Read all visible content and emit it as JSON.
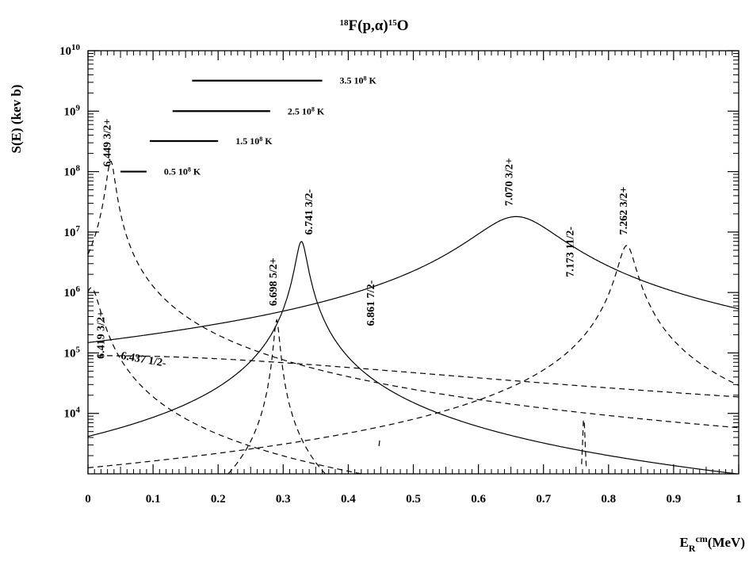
{
  "chart_data": {
    "type": "line",
    "title": {
      "sup": "18",
      "main": "F(p,",
      "alpha": "α",
      "close": ")",
      "sup2": "15",
      "main2": "O"
    },
    "xlabel": {
      "base": "E",
      "sub": "R",
      "sup": "cm",
      "unit": "(MeV)"
    },
    "ylabel": "S(E) (kev b)",
    "yscale": "log",
    "xlim": [
      0,
      1
    ],
    "ylim": [
      1000,
      10000000000
    ],
    "x_ticks": [
      {
        "value": 0,
        "label": "0"
      },
      {
        "value": 0.1,
        "label": "0.1"
      },
      {
        "value": 0.2,
        "label": "0.2"
      },
      {
        "value": 0.3,
        "label": "0.3"
      },
      {
        "value": 0.4,
        "label": "0.4"
      },
      {
        "value": 0.5,
        "label": "0.5"
      },
      {
        "value": 0.6,
        "label": "0.6"
      },
      {
        "value": 0.7,
        "label": "0.7"
      },
      {
        "value": 0.8,
        "label": "0.8"
      },
      {
        "value": 0.9,
        "label": "0.9"
      },
      {
        "value": 1,
        "label": "1"
      }
    ],
    "y_ticks": [
      {
        "value": 10000,
        "base": "10",
        "exp": "4"
      },
      {
        "value": 100000,
        "base": "10",
        "exp": "5"
      },
      {
        "value": 1000000,
        "base": "10",
        "exp": "6"
      },
      {
        "value": 10000000,
        "base": "10",
        "exp": "7"
      },
      {
        "value": 100000000,
        "base": "10",
        "exp": "8"
      },
      {
        "value": 1000000000,
        "base": "10",
        "exp": "9"
      },
      {
        "value": 10000000000,
        "base": "10",
        "exp": "10"
      }
    ],
    "resonances": [
      {
        "label": "6.449 3/2+",
        "Er": 0.035,
        "peak": 150000000,
        "width": 0.006,
        "style": "dashed",
        "label_x": 0.035,
        "label_y": 120000000
      },
      {
        "label": "6.419 3/2+",
        "Er": 0.005,
        "peak": 1200000,
        "width": 0.012,
        "style": "dashed",
        "label_x": 0.025,
        "label_y": 80000
      },
      {
        "label": "6.437 1/2-",
        "Er": 0.024,
        "peak": 90000,
        "width": 0.5,
        "style": "dashed",
        "label_x": 0.05,
        "label_y": 80000,
        "rotate": 10
      },
      {
        "label": "6.698 5/2+",
        "Er": 0.29,
        "peak": 350000,
        "width": 0.004,
        "style": "dashed",
        "label_x": 0.29,
        "label_y": 600000
      },
      {
        "label": "6.741 3/2-",
        "Er": 0.328,
        "peak": 7000000,
        "width": 0.008,
        "style": "solid",
        "label_x": 0.345,
        "label_y": 9000000
      },
      {
        "label": "6.861 7/2-",
        "Er": 0.448,
        "peak": 5000,
        "width": 0.001,
        "style": "dashed",
        "label_x": 0.44,
        "label_y": 280000
      },
      {
        "label": "7.070 3/2+",
        "Er": 0.658,
        "peak": 18000000,
        "width": 0.06,
        "style": "solid",
        "label_x": 0.652,
        "label_y": 27000000
      },
      {
        "label": "7.173 11/2-",
        "Er": 0.762,
        "peak": 9000,
        "width": 0.0015,
        "style": "dashed",
        "label_x": 0.746,
        "label_y": 1800000
      },
      {
        "label": "7.262 3/2+",
        "Er": 0.828,
        "peak": 6000000,
        "width": 0.012,
        "style": "dashed",
        "label_x": 0.828,
        "label_y": 9000000
      }
    ],
    "temperature_windows": [
      {
        "label_base": "0.5 10",
        "label_exp": "8",
        "label_unit": " K",
        "x0": 0.05,
        "x1": 0.09,
        "y": 100000000
      },
      {
        "label_base": "1.5 10",
        "label_exp": "8",
        "label_unit": " K",
        "x0": 0.095,
        "x1": 0.2,
        "y": 320000000
      },
      {
        "label_base": "2.5 10",
        "label_exp": "8",
        "label_unit": " K",
        "x0": 0.13,
        "x1": 0.28,
        "y": 1000000000
      },
      {
        "label_base": "3.5 10",
        "label_exp": "8",
        "label_unit": " K",
        "x0": 0.16,
        "x1": 0.36,
        "y": 3200000000
      }
    ]
  }
}
